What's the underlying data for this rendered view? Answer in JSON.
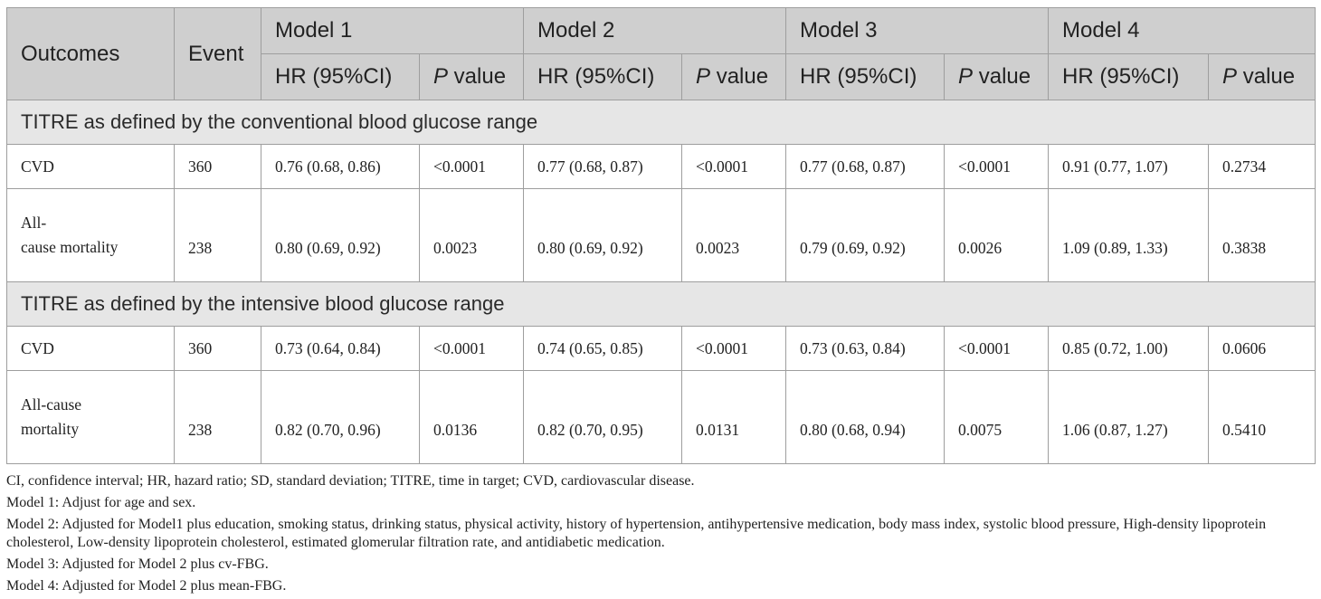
{
  "table": {
    "header": {
      "outcomes": "Outcomes",
      "event": "Event",
      "models": [
        {
          "name": "Model 1"
        },
        {
          "name": "Model 2"
        },
        {
          "name": "Model 3"
        },
        {
          "name": "Model 4"
        }
      ],
      "hr_label": "HR (95%CI)",
      "p_italic": "P",
      "p_rest": " value"
    },
    "sections": [
      {
        "title": "TITRE as defined by the conventional blood glucose range",
        "rows": [
          {
            "outcome": "CVD",
            "event": "360",
            "values": [
              "0.76 (0.68, 0.86)",
              "<0.0001",
              "0.77 (0.68, 0.87)",
              "<0.0001",
              "0.77 (0.68, 0.87)",
              "<0.0001",
              "0.91 (0.77, 1.07)",
              "0.2734"
            ]
          },
          {
            "outcome_line1": "All-",
            "outcome_line2": "cause mortality",
            "event": "238",
            "values": [
              "0.80 (0.69, 0.92)",
              "0.0023",
              "0.80 (0.69, 0.92)",
              "0.0023",
              "0.79 (0.69, 0.92)",
              "0.0026",
              "1.09 (0.89, 1.33)",
              "0.3838"
            ]
          }
        ]
      },
      {
        "title": "TITRE as defined by the intensive blood glucose range",
        "rows": [
          {
            "outcome": "CVD",
            "event": "360",
            "values": [
              "0.73 (0.64, 0.84)",
              "<0.0001",
              "0.74 (0.65, 0.85)",
              "<0.0001",
              "0.73 (0.63, 0.84)",
              "<0.0001",
              "0.85 (0.72, 1.00)",
              "0.0606"
            ]
          },
          {
            "outcome_line1": "All-cause",
            "outcome_line2": "mortality",
            "event": "238",
            "values": [
              "0.82 (0.70, 0.96)",
              "0.0136",
              "0.82 (0.70, 0.95)",
              "0.0131",
              "0.80 (0.68, 0.94)",
              "0.0075",
              "1.06 (0.87, 1.27)",
              "0.5410"
            ]
          }
        ]
      }
    ]
  },
  "notes": {
    "abbreviations": "CI, confidence interval; HR, hazard ratio; SD, standard deviation; TITRE, time in target; CVD, cardiovascular disease.",
    "model1": "Model 1: Adjust for age and sex.",
    "model2": "Model 2: Adjusted for Model1 plus education, smoking status, drinking status, physical activity, history of hypertension, antihypertensive medication, body mass index, systolic blood pressure, High-density lipoprotein cholesterol, Low-density lipoprotein cholesterol, estimated glomerular filtration rate, and antidiabetic medication.",
    "model3": "Model 3: Adjusted for Model 2 plus cv-FBG.",
    "model4": "Model 4: Adjusted for Model 2 plus mean-FBG."
  }
}
